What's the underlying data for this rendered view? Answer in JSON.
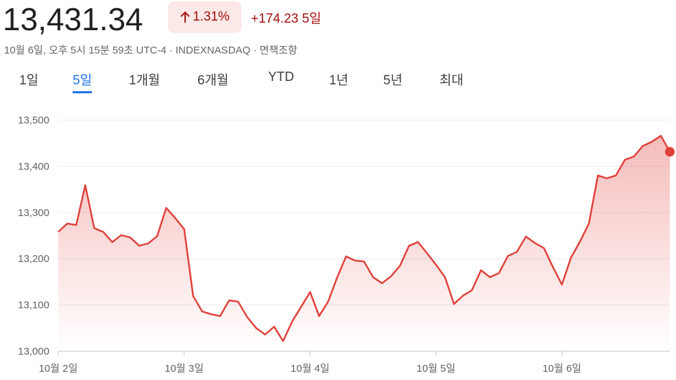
{
  "header": {
    "price": "13,431.34",
    "change_percent": "1.31%",
    "change": "+174.23",
    "period": "5일",
    "subtitle": "10월 6일, 오후 5시 15분 59초 UTC-4 · INDEXNASDAQ · 면책조항"
  },
  "tabs": [
    "1일",
    "5일",
    "1개월",
    "6개월",
    "YTD",
    "1년",
    "5년",
    "최대"
  ],
  "chart_data": {
    "type": "line",
    "color": "#e0403a",
    "grid": true,
    "categories": [
      "10월 2일",
      null,
      null,
      null,
      null,
      null,
      null,
      null,
      null,
      null,
      null,
      null,
      null,
      null,
      "10월 3일",
      null,
      null,
      null,
      null,
      null,
      null,
      null,
      null,
      null,
      null,
      null,
      null,
      null,
      "10월 4일",
      null,
      null,
      null,
      null,
      null,
      null,
      null,
      null,
      null,
      null,
      null,
      null,
      null,
      "10월 5일",
      null,
      null,
      null,
      null,
      null,
      null,
      null,
      null,
      null,
      null,
      null,
      null,
      null,
      "10월 6일",
      null,
      null,
      null,
      null,
      null,
      null,
      null,
      null,
      null,
      null,
      null,
      null
    ],
    "values": [
      13258,
      13276,
      13273,
      13359,
      13266,
      13258,
      13236,
      13251,
      13246,
      13228,
      13233,
      13249,
      13310,
      13288,
      13264,
      13119,
      13086,
      13080,
      13076,
      13110,
      13107,
      13074,
      13050,
      13036,
      13053,
      13022,
      13064,
      13096,
      13128,
      13076,
      13107,
      13159,
      13205,
      13196,
      13194,
      13160,
      13147,
      13162,
      13185,
      13228,
      13236,
      13212,
      13187,
      13160,
      13102,
      13120,
      13132,
      13175,
      13160,
      13169,
      13206,
      13215,
      13248,
      13234,
      13223,
      13182,
      13144,
      13202,
      13237,
      13276,
      13380,
      13374,
      13380,
      13414,
      13421,
      13444,
      13453,
      13466,
      13431.34
    ],
    "ylim": [
      13000,
      13500
    ],
    "yticks": [
      {
        "value": 13000,
        "label": "13,000"
      },
      {
        "value": 13100,
        "label": "13,100"
      },
      {
        "value": 13200,
        "label": "13,200"
      },
      {
        "value": 13300,
        "label": "13,300"
      },
      {
        "value": 13400,
        "label": "13,400"
      },
      {
        "value": 13500,
        "label": "13,500"
      }
    ]
  }
}
